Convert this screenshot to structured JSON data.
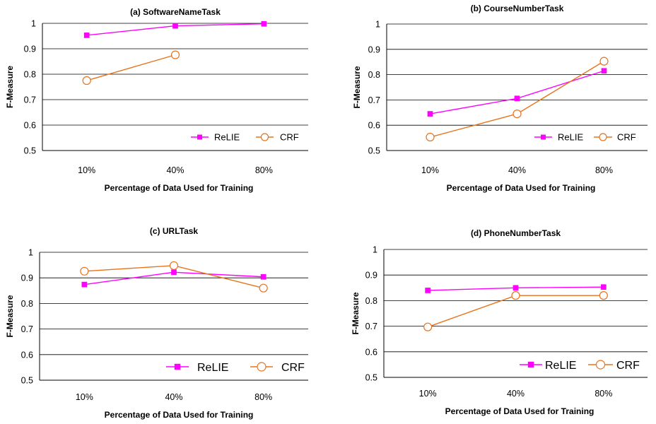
{
  "chart_data": [
    {
      "type": "line",
      "title": "(a) SoftwareNameTask",
      "xlabel": "Percentage of Data Used for Training",
      "ylabel": "F-Measure",
      "categories": [
        "10%",
        "40%",
        "80%"
      ],
      "ylim": [
        0.5,
        1
      ],
      "yticks": [
        "0.5",
        "0.6",
        "0.7",
        "0.8",
        "0.9",
        "1"
      ],
      "grid": true,
      "legend": "bottom-right",
      "series": [
        {
          "name": "ReLIE",
          "values": [
            0.953,
            0.99,
            0.998
          ],
          "color": "#ff00ff",
          "marker": "square"
        },
        {
          "name": "CRF",
          "values": [
            0.775,
            0.876,
            null
          ],
          "color": "#e8731b",
          "marker": "circle"
        }
      ]
    },
    {
      "type": "line",
      "title": "(b) CourseNumberTask",
      "xlabel": "Percentage of Data Used for Training",
      "ylabel": "F-Measure",
      "categories": [
        "10%",
        "40%",
        "80%"
      ],
      "ylim": [
        0.5,
        1
      ],
      "yticks": [
        "0.5",
        "0.6",
        "0.7",
        "0.8",
        "0.9",
        "1"
      ],
      "grid": true,
      "legend": "bottom-right",
      "series": [
        {
          "name": "ReLIE",
          "values": [
            0.645,
            0.706,
            0.815
          ],
          "color": "#ff00ff",
          "marker": "square"
        },
        {
          "name": "CRF",
          "values": [
            0.553,
            0.645,
            0.853
          ],
          "color": "#e8731b",
          "marker": "circle"
        }
      ]
    },
    {
      "type": "line",
      "title": "(c) URLTask",
      "xlabel": "Percentage of Data Used for Training",
      "ylabel": "F-Measure",
      "categories": [
        "10%",
        "40%",
        "80%"
      ],
      "ylim": [
        0.5,
        1
      ],
      "yticks": [
        "0.5",
        "0.6",
        "0.7",
        "0.8",
        "0.9",
        "1"
      ],
      "grid": true,
      "legend": "bottom-right",
      "series": [
        {
          "name": "ReLIE",
          "values": [
            0.874,
            0.922,
            0.904
          ],
          "color": "#ff00ff",
          "marker": "square"
        },
        {
          "name": "CRF",
          "values": [
            0.926,
            0.948,
            0.86
          ],
          "color": "#e8731b",
          "marker": "circle"
        }
      ]
    },
    {
      "type": "line",
      "title": "(d) PhoneNumberTask",
      "xlabel": "Percentage of Data Used for Training",
      "ylabel": "F-Measure",
      "categories": [
        "10%",
        "40%",
        "80%"
      ],
      "ylim": [
        0.5,
        1
      ],
      "yticks": [
        "0.5",
        "0.6",
        "0.7",
        "0.8",
        "0.9",
        "1"
      ],
      "grid": true,
      "legend": "bottom-right",
      "series": [
        {
          "name": "ReLIE",
          "values": [
            0.84,
            0.85,
            0.853
          ],
          "color": "#ff00ff",
          "marker": "square"
        },
        {
          "name": "CRF",
          "values": [
            0.697,
            0.82,
            0.82
          ],
          "color": "#e8731b",
          "marker": "circle"
        }
      ]
    }
  ]
}
